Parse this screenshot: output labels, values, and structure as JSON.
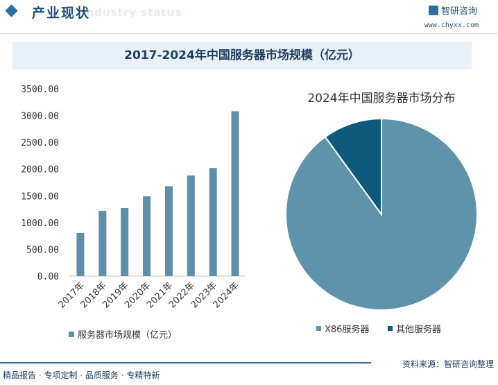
{
  "header": {
    "title": "产业现状",
    "ghost": "Industry status"
  },
  "brand": {
    "name": "智研咨询",
    "url": "www.chyxx.com"
  },
  "main_title": "2017-2024年中国服务器市场规模（亿元）",
  "colors": {
    "bar": "#5f8fa8",
    "pie_main": "#5f93ab",
    "pie_other": "#0d5a7c",
    "accent": "#2f6fa0"
  },
  "chart_data": [
    {
      "type": "bar",
      "categories": [
        "2017年",
        "2018年",
        "2019年",
        "2020年",
        "2021年",
        "2022年",
        "2023年",
        "2024年"
      ],
      "series": [
        {
          "name": "服务器市场规模（亿元）",
          "values": [
            805,
            1220,
            1270,
            1490,
            1680,
            1880,
            2020,
            3080
          ]
        }
      ],
      "yticks": [
        "0.00",
        "500.00",
        "1000.00",
        "1500.00",
        "2000.00",
        "2500.00",
        "3000.00",
        "3500.00"
      ],
      "ylim": [
        0,
        3500
      ],
      "grid": false,
      "legend": "bottom"
    },
    {
      "type": "pie",
      "title": "2024年中国服务器市场分布",
      "labels": [
        "X86服务器",
        "其他服务器"
      ],
      "values": [
        90,
        10
      ],
      "legend": "bottom"
    }
  ],
  "footer": {
    "left": "精品报告 · 专项定制 · 品质服务 · 专精特新",
    "right": "资料来源：智研咨询整理"
  }
}
